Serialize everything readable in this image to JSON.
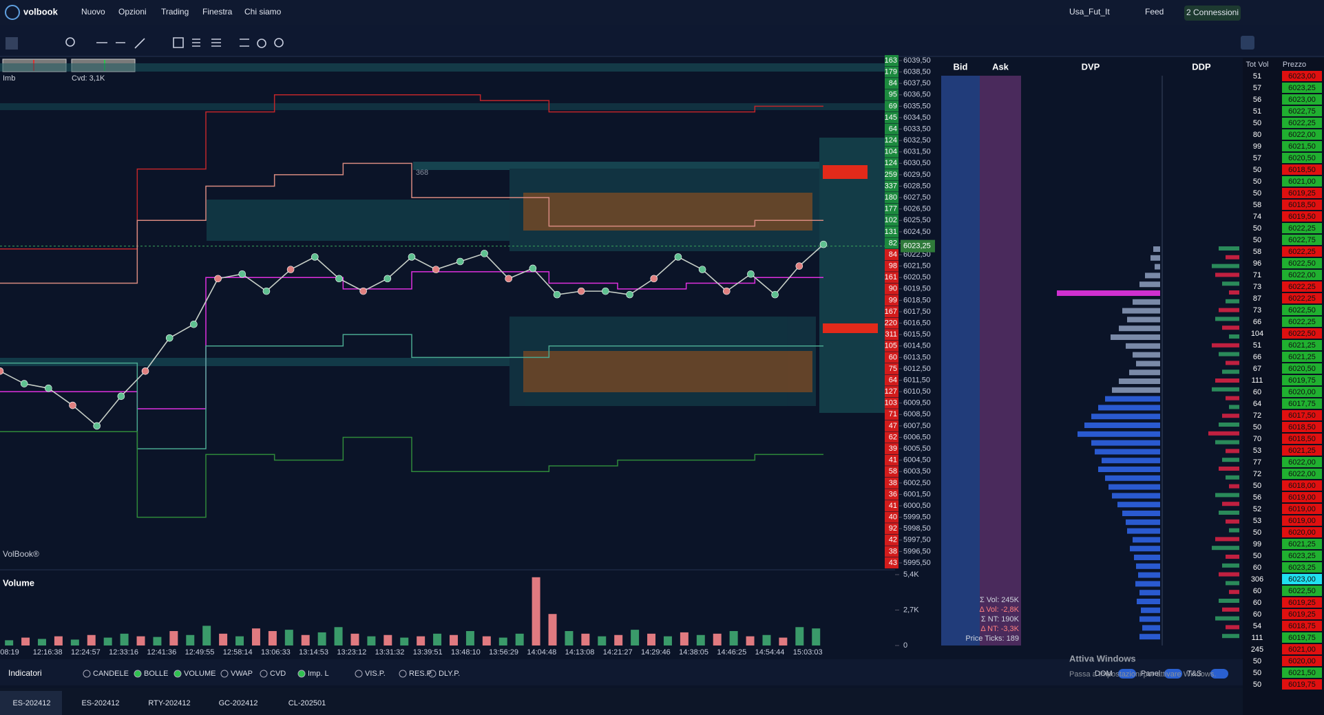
{
  "menu": {
    "brand": "volbook",
    "items": [
      "Nuovo",
      "Opzioni",
      "Trading",
      "Finestra",
      "Chi siamo"
    ],
    "instrument": "Usa_Fut_It",
    "feed": "Feed",
    "connections": "2 Connessioni"
  },
  "chart_data": {
    "type": "line",
    "labels": {
      "imb": "Imb",
      "cvd": "Cvd: 3,1K",
      "brand": "VolBook®",
      "marker": "368",
      "current": "6023,25"
    },
    "current_price": 6023.25,
    "ylim": [
      5995.5,
      6039.5
    ],
    "yticks": [
      {
        "value": 6039.5,
        "label": "6039,50"
      },
      {
        "value": 6038.5,
        "label": "6038,50"
      },
      {
        "value": 6037.5,
        "label": "6037,50"
      },
      {
        "value": 6036.5,
        "label": "6036,50"
      },
      {
        "value": 6035.5,
        "label": "6035,50"
      },
      {
        "value": 6034.5,
        "label": "6034,50"
      },
      {
        "value": 6033.5,
        "label": "6033,50"
      },
      {
        "value": 6032.5,
        "label": "6032,50"
      },
      {
        "value": 6031.5,
        "label": "6031,50"
      },
      {
        "value": 6030.5,
        "label": "6030,50"
      },
      {
        "value": 6029.5,
        "label": "6029,50"
      },
      {
        "value": 6028.5,
        "label": "6028,50"
      },
      {
        "value": 6027.5,
        "label": "6027,50"
      },
      {
        "value": 6026.5,
        "label": "6026,50"
      },
      {
        "value": 6025.5,
        "label": "6025,50"
      },
      {
        "value": 6024.5,
        "label": "6024,50"
      },
      {
        "value": 6023.5,
        "label": "6023,50"
      },
      {
        "value": 6022.5,
        "label": "6022,50"
      },
      {
        "value": 6021.5,
        "label": "6021,50"
      },
      {
        "value": 6020.5,
        "label": "6020,50"
      },
      {
        "value": 6019.5,
        "label": "6019,50"
      },
      {
        "value": 6018.5,
        "label": "6018,50"
      },
      {
        "value": 6017.5,
        "label": "6017,50"
      },
      {
        "value": 6016.5,
        "label": "6016,50"
      },
      {
        "value": 6015.5,
        "label": "6015,50"
      },
      {
        "value": 6014.5,
        "label": "6014,50"
      },
      {
        "value": 6013.5,
        "label": "6013,50"
      },
      {
        "value": 6012.5,
        "label": "6012,50"
      },
      {
        "value": 6011.5,
        "label": "6011,50"
      },
      {
        "value": 6010.5,
        "label": "6010,50"
      },
      {
        "value": 6009.5,
        "label": "6009,50"
      },
      {
        "value": 6008.5,
        "label": "6008,50"
      },
      {
        "value": 6007.5,
        "label": "6007,50"
      },
      {
        "value": 6006.5,
        "label": "6006,50"
      },
      {
        "value": 6005.5,
        "label": "6005,50"
      },
      {
        "value": 6004.5,
        "label": "6004,50"
      },
      {
        "value": 6003.5,
        "label": "6003,50"
      },
      {
        "value": 6002.5,
        "label": "6002,50"
      },
      {
        "value": 6001.5,
        "label": "6001,50"
      },
      {
        "value": 6000.5,
        "label": "6000,50"
      },
      {
        "value": 5999.5,
        "label": "5999,50"
      },
      {
        "value": 5998.5,
        "label": "5998,50"
      },
      {
        "value": 5997.5,
        "label": "5997,50"
      },
      {
        "value": 5996.5,
        "label": "5996,50"
      },
      {
        "value": 5995.5,
        "label": "5995,50"
      }
    ],
    "ask_volumes": [
      163,
      179,
      84,
      95,
      69,
      145,
      64,
      124,
      104,
      124,
      259,
      337,
      180,
      177,
      102,
      131,
      82
    ],
    "bid_volumes": [
      84,
      98,
      161,
      90,
      99,
      167,
      220,
      311,
      105,
      60,
      75,
      64,
      127,
      103,
      71,
      47,
      62,
      39,
      41,
      58,
      38,
      36,
      41,
      40,
      92,
      42,
      38,
      43
    ],
    "price": {
      "color": "#c8d0c8",
      "values": [
        6012.3,
        6011.2,
        6010.8,
        6009.3,
        6007.5,
        6010.1,
        6012.3,
        6015.2,
        6016.4,
        6020.4,
        6020.8,
        6019.3,
        6021.2,
        6022.3,
        6020.4,
        6019.3,
        6020.4,
        6022.3,
        6021.2,
        6021.9,
        6022.6,
        6020.4,
        6021.3,
        6019,
        6019.3,
        6019.3,
        6019,
        6020.4,
        6022.3,
        6021.2,
        6019.3,
        6020.8,
        6019,
        6021.5,
        6023.4
      ]
    },
    "bands": [
      {
        "color": "#c0262a",
        "values": [
          6023,
          6023,
          6030,
          6035,
          6036.5,
          6036.5,
          6036.5,
          6036,
          6035,
          6035,
          6035,
          6035.5
        ]
      },
      {
        "color": "#d88a80",
        "values": [
          6020,
          6020,
          6025.5,
          6028.5,
          6029.5,
          6030.5,
          6027.5,
          6027.5,
          6025,
          6025,
          6025,
          6025.5
        ]
      },
      {
        "color": "#e030e0",
        "values": [
          6010.5,
          6010.5,
          6009,
          6020.5,
          6020.5,
          6019.5,
          6021,
          6021,
          6020,
          6019.5,
          6020,
          6020.5
        ]
      },
      {
        "color": "#4aa890",
        "values": [
          6013,
          6013,
          6005.5,
          6014.5,
          6014.5,
          6015.5,
          6013.5,
          6013.5,
          6014.5,
          6014.5,
          6014.5,
          6014.5
        ]
      },
      {
        "color": "#2f8a3a",
        "values": [
          6007,
          6007,
          5999.5,
          6005,
          6004.5,
          6006.5,
          6003.5,
          6003.5,
          6004,
          6004.5,
          6004.5,
          6005
        ]
      }
    ]
  },
  "volume_data": {
    "type": "bar",
    "title": "Volume",
    "ylim": [
      0,
      5400
    ],
    "yticks": [
      {
        "value": 5400,
        "label": "5,4K"
      },
      {
        "value": 2700,
        "label": "2,7K"
      },
      0
    ],
    "values": [
      400,
      600,
      500,
      700,
      450,
      800,
      600,
      900,
      700,
      650,
      1100,
      800,
      1500,
      900,
      700,
      1300,
      1100,
      1200,
      800,
      1000,
      1400,
      900,
      700,
      800,
      600,
      700,
      900,
      800,
      1100,
      700,
      600,
      900,
      5200,
      2400,
      1100,
      900,
      700,
      800,
      1200,
      900,
      700,
      1000,
      800,
      900,
      1100,
      700,
      800,
      600,
      1400,
      1300
    ],
    "up": [
      true,
      false,
      true,
      false,
      true,
      false,
      true,
      true,
      false,
      true,
      false,
      true,
      true,
      false,
      true,
      false,
      false,
      true,
      false,
      true,
      true,
      false,
      true,
      false,
      true,
      false,
      true,
      false,
      true,
      false,
      true,
      true,
      false,
      false,
      true,
      false,
      true,
      false,
      true,
      false,
      true,
      false,
      true,
      false,
      true,
      false,
      true,
      false,
      true,
      true
    ],
    "times": [
      "08:19",
      "12:16:38",
      "12:24:57",
      "12:33:16",
      "12:41:36",
      "12:49:55",
      "12:58:14",
      "13:06:33",
      "13:14:53",
      "13:23:12",
      "13:31:32",
      "13:39:51",
      "13:48:10",
      "13:56:29",
      "14:04:48",
      "14:13:08",
      "14:21:27",
      "14:29:46",
      "14:38:05",
      "14:46:25",
      "14:54:44",
      "15:03:03"
    ]
  },
  "book": {
    "bid": "Bid",
    "ask": "Ask",
    "stats": [
      "Σ Vol: 245K",
      "Δ Vol: -2,8K",
      "Σ NT: 190K",
      "Δ NT: -3,3K",
      "Price Ticks: 189"
    ]
  },
  "dvp": {
    "title": "DVP",
    "values": [
      10,
      14,
      8,
      22,
      30,
      150,
      40,
      55,
      48,
      60,
      72,
      50,
      40,
      35,
      45,
      60,
      70,
      80,
      90,
      100,
      110,
      120,
      100,
      95,
      85,
      90,
      80,
      75,
      70,
      62,
      55,
      50,
      48,
      40,
      44,
      38,
      35,
      32,
      36,
      30,
      34,
      28,
      30,
      26,
      30
    ]
  },
  "ddp": {
    "title": "DDP",
    "values": [
      30,
      -20,
      40,
      -35,
      25,
      -15,
      20,
      -30,
      35,
      -25,
      15,
      -40,
      30,
      -20,
      25,
      -35,
      40,
      -20,
      15,
      -25,
      30,
      -45,
      35,
      -20,
      25,
      -30,
      20,
      -15,
      35,
      -25,
      30,
      -20,
      15,
      -35,
      40,
      -20,
      25,
      -30,
      20,
      -15,
      30,
      -25,
      35,
      -20,
      25
    ]
  },
  "table": {
    "headers": [
      "Tot Vol",
      "Prezzo"
    ],
    "rows": [
      [
        51,
        "6023,00",
        "r"
      ],
      [
        57,
        "6023,25",
        "g"
      ],
      [
        56,
        "6023,00",
        "g"
      ],
      [
        51,
        "6022,75",
        "g"
      ],
      [
        50,
        "6022,25",
        "g"
      ],
      [
        80,
        "6022,00",
        "g"
      ],
      [
        99,
        "6021,50",
        "g"
      ],
      [
        57,
        "6020,50",
        "g"
      ],
      [
        50,
        "6018,50",
        "r"
      ],
      [
        50,
        "6021,00",
        "g"
      ],
      [
        50,
        "6019,25",
        "r"
      ],
      [
        58,
        "6018,50",
        "r"
      ],
      [
        74,
        "6019,50",
        "r"
      ],
      [
        50,
        "6022,25",
        "g"
      ],
      [
        50,
        "6022,75",
        "g"
      ],
      [
        58,
        "6022,25",
        "r"
      ],
      [
        96,
        "6022,50",
        "g"
      ],
      [
        71,
        "6022,00",
        "g"
      ],
      [
        73,
        "6022,25",
        "r"
      ],
      [
        87,
        "6022,25",
        "r"
      ],
      [
        73,
        "6022,50",
        "g"
      ],
      [
        66,
        "6022,25",
        "g"
      ],
      [
        104,
        "6022,50",
        "r"
      ],
      [
        51,
        "6021,25",
        "g"
      ],
      [
        66,
        "6021,25",
        "g"
      ],
      [
        67,
        "6020,50",
        "g"
      ],
      [
        111,
        "6019,75",
        "g"
      ],
      [
        60,
        "6020,00",
        "g"
      ],
      [
        64,
        "6017,75",
        "g"
      ],
      [
        72,
        "6017,50",
        "r"
      ],
      [
        50,
        "6018,50",
        "r"
      ],
      [
        70,
        "6018,50",
        "r"
      ],
      [
        53,
        "6021,25",
        "r"
      ],
      [
        77,
        "6022,00",
        "g"
      ],
      [
        72,
        "6022,00",
        "g"
      ],
      [
        50,
        "6018,00",
        "r"
      ],
      [
        56,
        "6019,00",
        "r"
      ],
      [
        52,
        "6019,00",
        "r"
      ],
      [
        53,
        "6019,00",
        "r"
      ],
      [
        50,
        "6020,00",
        "r"
      ],
      [
        99,
        "6021,25",
        "g"
      ],
      [
        50,
        "6023,25",
        "g"
      ],
      [
        60,
        "6023,25",
        "g"
      ],
      [
        306,
        "6023,00",
        "c"
      ],
      [
        60,
        "6022,50",
        "g"
      ],
      [
        60,
        "6019,25",
        "r"
      ],
      [
        60,
        "6019,25",
        "r"
      ],
      [
        54,
        "6018,75",
        "r"
      ],
      [
        111,
        "6019,75",
        "g"
      ],
      [
        245,
        "6021,00",
        "r"
      ],
      [
        50,
        "6020,00",
        "r"
      ],
      [
        50,
        "6021,50",
        "g"
      ],
      [
        50,
        "6019,75",
        "r"
      ]
    ]
  },
  "indicators": {
    "title": "Indicatori",
    "options": [
      {
        "label": "CANDELE",
        "on": false
      },
      {
        "label": "BOLLE",
        "on": true
      },
      {
        "label": "VOLUME",
        "on": true
      },
      {
        "label": "VWAP",
        "on": false
      },
      {
        "label": "CVD",
        "on": false
      },
      {
        "label": "Imp. L",
        "on": true
      },
      {
        "label": "VIS.P.",
        "on": false
      },
      {
        "label": "RES.P.",
        "on": false
      },
      {
        "label": "DLY.P.",
        "on": false
      }
    ],
    "toggles": [
      "DOM",
      "Panel",
      "T&S"
    ]
  },
  "watermark": {
    "title": "Attiva Windows",
    "text": "Passa a Impostazioni per attivare Windows."
  },
  "tabs": [
    "ES-202412",
    "ES-202412",
    "RTY-202412",
    "GC-202412",
    "CL-202501"
  ]
}
